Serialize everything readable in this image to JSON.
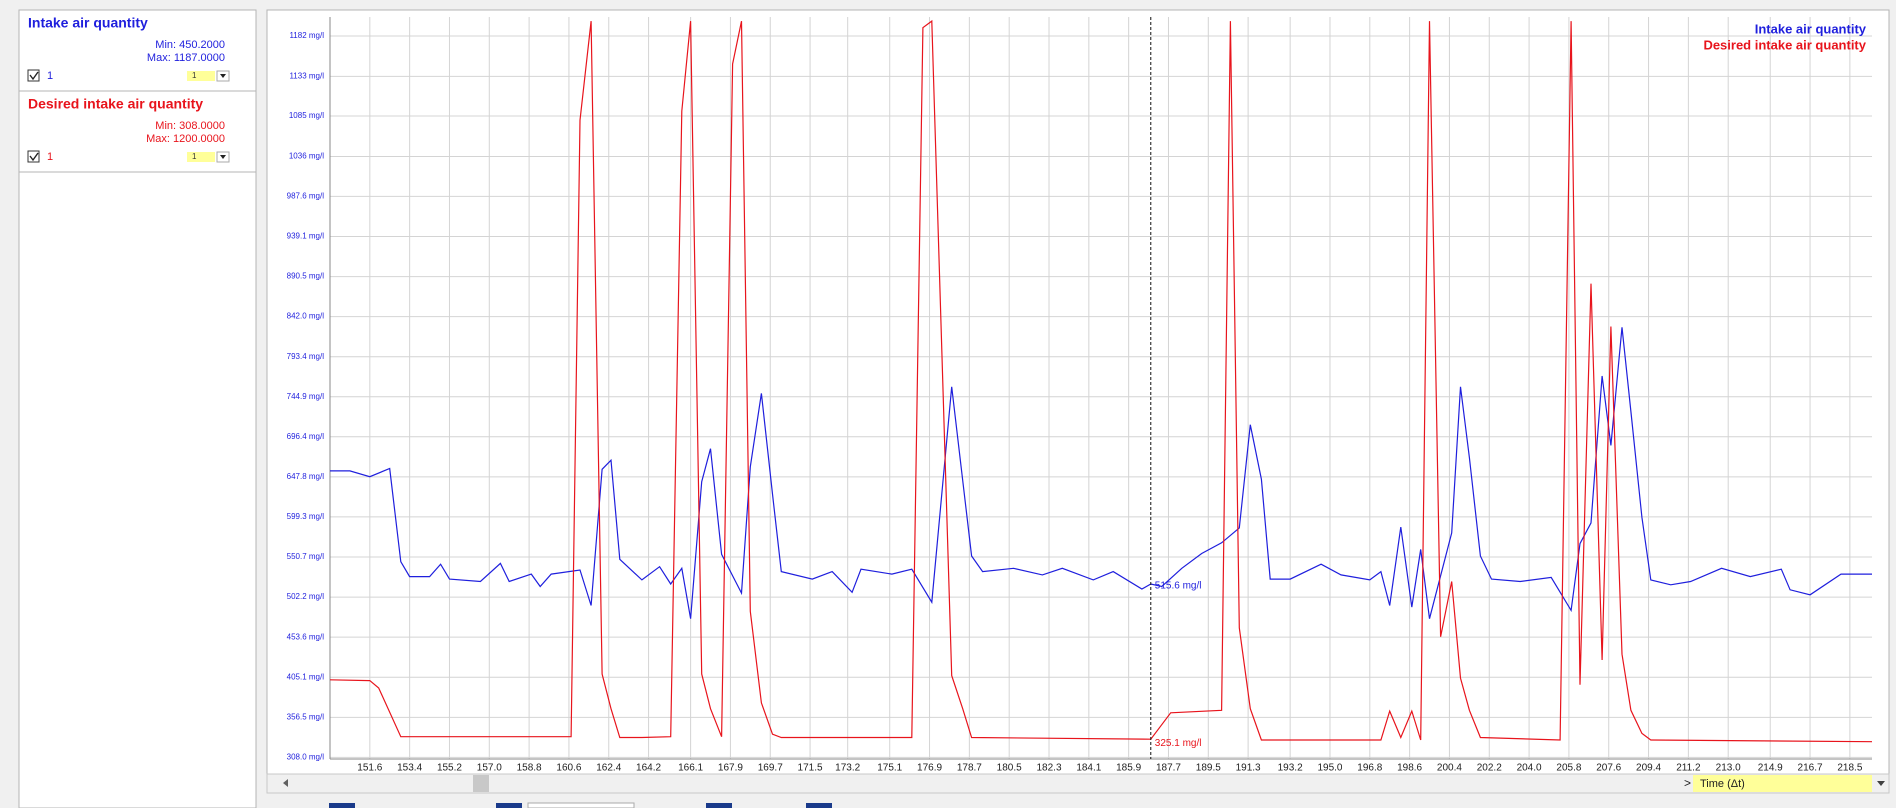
{
  "panel": {
    "groups": [
      {
        "title": "Intake air quantity",
        "color": "#1f1fdd",
        "min": "Min: 450.2000",
        "max": "Max: 1187.0000",
        "check_label": "1",
        "selector": "1"
      },
      {
        "title": "Desired intake air quantity",
        "color": "#e8141c",
        "min": "Min: 308.0000",
        "max": "Max: 1200.0000",
        "check_label": "1",
        "selector": "1"
      }
    ]
  },
  "chart_data": {
    "type": "line",
    "xlim": [
      149.8,
      219.5
    ],
    "xticks": [
      151.6,
      153.4,
      155.2,
      {
        "value": 157,
        "label": "157.0"
      },
      158.8,
      160.6,
      162.4,
      164.2,
      166.1,
      167.9,
      169.7,
      171.5,
      173.2,
      175.1,
      176.9,
      178.7,
      180.5,
      182.3,
      184.1,
      185.9,
      187.7,
      189.5,
      191.3,
      193.2,
      {
        "value": 195,
        "label": "195.0"
      },
      196.8,
      198.6,
      200.4,
      202.2,
      {
        "value": 204,
        "label": "204.0"
      },
      205.8,
      207.6,
      209.4,
      211.2,
      {
        "value": 213,
        "label": "213.0"
      },
      214.9,
      216.7,
      218.5
    ],
    "ylim": [
      306,
      1205
    ],
    "yticks": [
      {
        "value": 308,
        "label": "308.0 mg/l"
      },
      {
        "value": 356.5,
        "label": "356.5 mg/l"
      },
      {
        "value": 405.1,
        "label": "405.1 mg/l"
      },
      {
        "value": 453.6,
        "label": "453.6 mg/l"
      },
      {
        "value": 502.2,
        "label": "502.2 mg/l"
      },
      {
        "value": 550.7,
        "label": "550.7 mg/l"
      },
      {
        "value": 599.3,
        "label": "599.3 mg/l"
      },
      {
        "value": 647.8,
        "label": "647.8 mg/l"
      },
      {
        "value": 696.4,
        "label": "696.4 mg/l"
      },
      {
        "value": 744.9,
        "label": "744.9 mg/l"
      },
      {
        "value": 793.4,
        "label": "793.4 mg/l"
      },
      {
        "value": 842,
        "label": "842.0 mg/l"
      },
      {
        "value": 890.5,
        "label": "890.5 mg/l"
      },
      {
        "value": 939.1,
        "label": "939.1 mg/l"
      },
      {
        "value": 987.6,
        "label": "987.6 mg/l"
      },
      {
        "value": 1036,
        "label": "1036 mg/l"
      },
      {
        "value": 1085,
        "label": "1085 mg/l"
      },
      {
        "value": 1133,
        "label": "1133 mg/l"
      },
      {
        "value": 1182,
        "label": "1182 mg/l"
      }
    ],
    "grid": true,
    "legend": "top-right",
    "series": [
      {
        "name": "Intake air quantity",
        "color": "#1f1fdd",
        "x": [
          149.8,
          150.7,
          151.6,
          152.5,
          153.0,
          153.4,
          154.3,
          154.8,
          155.2,
          156.6,
          157.5,
          157.9,
          158.9,
          159.3,
          159.8,
          161.1,
          161.6,
          162.1,
          162.5,
          162.9,
          163.9,
          164.7,
          165.2,
          165.7,
          166.1,
          166.6,
          167.0,
          167.5,
          168.4,
          168.8,
          169.3,
          169.8,
          170.2,
          171.6,
          172.5,
          173.4,
          173.8,
          175.2,
          176.1,
          177.0,
          177.9,
          178.8,
          179.3,
          180.7,
          182.0,
          182.9,
          184.3,
          185.2,
          186.5,
          186.9,
          187.4,
          188.3,
          189.2,
          190.1,
          190.9,
          191.4,
          191.9,
          192.3,
          193.2,
          194.6,
          195.5,
          196.8,
          197.3,
          197.7,
          198.2,
          198.7,
          199.1,
          199.5,
          200.5,
          200.9,
          201.3,
          201.8,
          202.3,
          203.6,
          205.0,
          205.9,
          206.3,
          206.8,
          207.3,
          207.7,
          208.2,
          208.6,
          209.1,
          209.5,
          210.4,
          211.3,
          212.7,
          214.0,
          215.4,
          215.8,
          216.7,
          218.1,
          219.5
        ],
        "values": [
          655,
          655,
          648,
          658,
          545,
          527,
          527,
          542,
          524,
          521,
          543,
          521,
          530,
          515,
          530,
          535,
          492,
          657,
          668,
          548,
          523,
          539,
          518,
          537,
          476,
          642,
          682,
          554,
          507,
          660,
          749,
          627,
          533,
          524,
          533,
          508,
          536,
          530,
          536,
          496,
          757,
          552,
          533,
          537,
          529,
          537,
          523,
          533,
          512,
          518,
          515,
          537,
          555,
          568,
          586,
          711,
          645,
          524,
          524,
          542,
          529,
          523,
          533,
          492,
          587,
          490,
          560,
          476,
          580,
          757,
          671,
          552,
          524,
          521,
          526,
          486,
          567,
          592,
          770,
          686,
          829,
          727,
          599,
          523,
          517,
          521,
          537,
          527,
          536,
          511,
          505,
          530,
          530
        ]
      },
      {
        "name": "Desired intake air quantity",
        "color": "#e8141c",
        "x": [
          149.8,
          151.6,
          152.0,
          153.0,
          160.7,
          161.1,
          161.6,
          162.1,
          162.5,
          162.9,
          163.9,
          165.2,
          165.7,
          166.1,
          166.6,
          167.0,
          167.5,
          168.0,
          168.4,
          168.8,
          169.3,
          169.8,
          170.2,
          176.1,
          176.6,
          177.0,
          177.9,
          178.4,
          178.8,
          186.9,
          187.8,
          190.1,
          190.5,
          190.9,
          191.4,
          191.9,
          197.3,
          197.7,
          198.2,
          198.7,
          199.1,
          199.5,
          200.0,
          200.5,
          200.9,
          201.3,
          201.8,
          205.4,
          205.9,
          206.3,
          206.8,
          207.3,
          207.7,
          208.2,
          208.6,
          209.1,
          209.5,
          219.5
        ],
        "values": [
          402,
          401,
          392,
          333,
          333,
          1080,
          1200,
          409,
          367,
          332,
          332,
          333,
          1091,
          1200,
          409,
          367,
          333,
          1148,
          1200,
          485,
          374,
          336,
          332,
          332,
          1192,
          1200,
          407,
          367,
          332,
          330,
          362,
          365,
          1200,
          465,
          367,
          329,
          329,
          364,
          332,
          364,
          329,
          1200,
          454,
          521,
          404,
          365,
          332,
          329,
          1200,
          396,
          882,
          426,
          830,
          433,
          365,
          337,
          329,
          327
        ]
      }
    ],
    "cursor": {
      "x": 186.9,
      "readouts": [
        {
          "value": 515.6,
          "label": "515.6 mg/l"
        },
        {
          "value": 325.1,
          "label": "325.1 mg/l"
        }
      ]
    }
  },
  "footer": {
    "next": ">",
    "time_label": "Time (Δt)"
  }
}
